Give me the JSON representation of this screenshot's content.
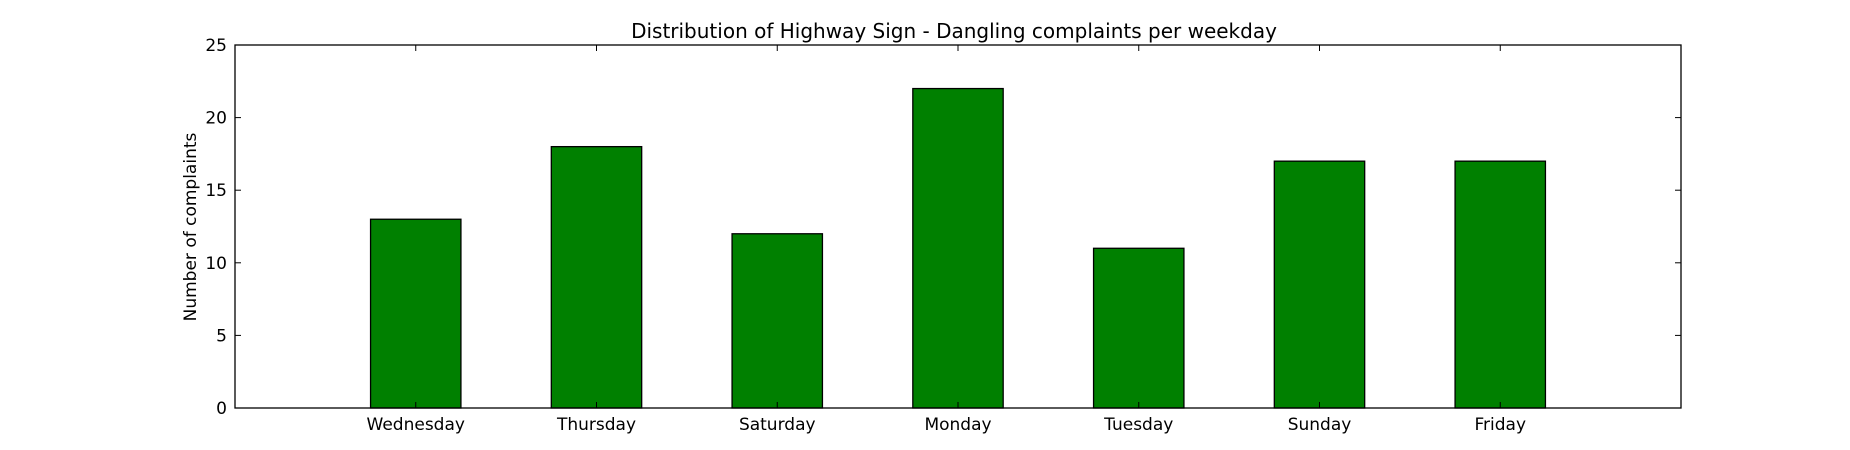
{
  "chart_data": {
    "type": "bar",
    "title": "Distribution of  Highway Sign - Dangling complaints per weekday",
    "xlabel": "",
    "ylabel": "Number of complaints",
    "categories": [
      "Wednesday",
      "Thursday",
      "Saturday",
      "Monday",
      "Tuesday",
      "Sunday",
      "Friday"
    ],
    "values": [
      13,
      18,
      12,
      22,
      11,
      17,
      17
    ],
    "ylim": [
      0,
      25
    ],
    "yticks": [
      0,
      5,
      10,
      15,
      20,
      25
    ],
    "bar_color": "#008000",
    "edge_color": "#000000",
    "grid": false,
    "legend": "none"
  }
}
